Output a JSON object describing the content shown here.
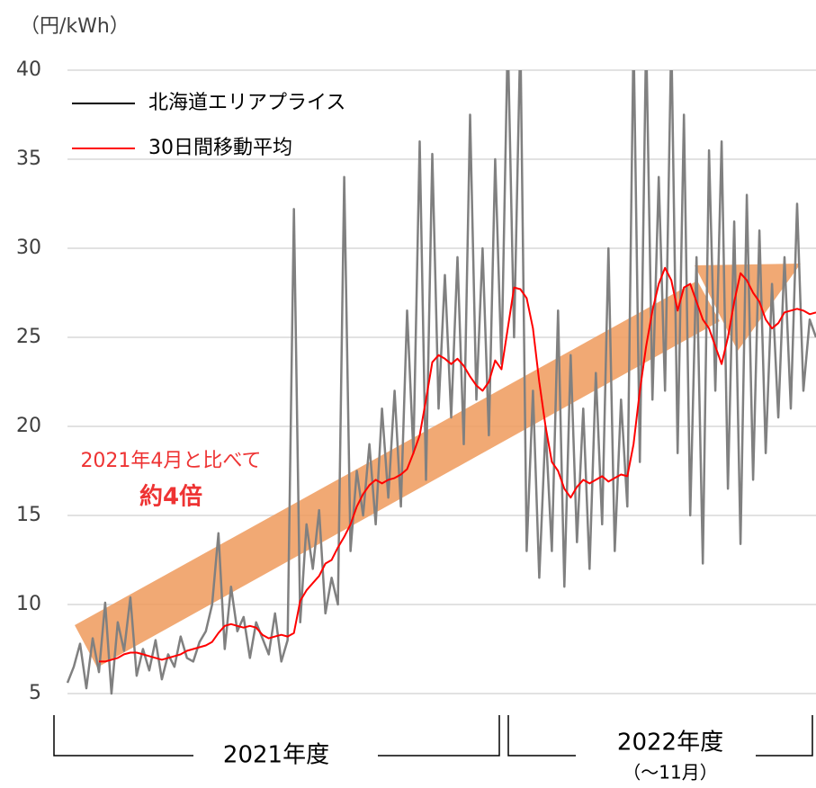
{
  "chart_data": {
    "type": "line",
    "y_label": "（円/kWh）",
    "ylim": [
      5,
      40
    ],
    "yticks": [
      5,
      10,
      15,
      20,
      25,
      30,
      35,
      40
    ],
    "grid": true,
    "legend": "upper left",
    "series": [
      {
        "name": "北海道エリアプライス",
        "color": "#808080",
        "values": [
          5.6,
          6.5,
          7.8,
          5.3,
          8.1,
          6.2,
          10.1,
          5.0,
          9.0,
          7.4,
          10.4,
          6.0,
          7.5,
          6.3,
          8.0,
          5.8,
          7.2,
          6.5,
          8.2,
          7.0,
          6.8,
          7.9,
          8.5,
          10.0,
          14.0,
          7.5,
          11.0,
          8.5,
          9.3,
          7.0,
          9.0,
          8.1,
          7.2,
          9.5,
          6.8,
          8.0,
          32.2,
          9.0,
          14.5,
          12.0,
          15.3,
          9.5,
          11.5,
          10.0,
          34.0,
          13.0,
          17.5,
          15.0,
          19.0,
          14.5,
          21.0,
          16.0,
          22.0,
          15.5,
          26.5,
          18.5,
          36.0,
          17.0,
          35.3,
          21.0,
          28.5,
          20.5,
          29.5,
          19.0,
          37.5,
          21.5,
          30.0,
          19.5,
          35.0,
          23.5,
          42.0,
          25.0,
          42.0,
          13.0,
          22.0,
          11.5,
          20.0,
          13.0,
          26.5,
          11.0,
          24.0,
          13.5,
          21.0,
          12.0,
          23.0,
          14.5,
          30.0,
          13.0,
          21.5,
          15.5,
          42.0,
          18.0,
          42.0,
          21.5,
          34.0,
          22.0,
          42.0,
          18.5,
          37.5,
          15.0,
          29.5,
          12.3,
          35.5,
          22.0,
          36.0,
          16.5,
          31.5,
          13.4,
          33.0,
          17.0,
          31.0,
          18.5,
          28.0,
          20.5,
          29.5,
          21.0,
          32.5,
          22.0,
          26.0,
          25.0
        ]
      },
      {
        "name": "30日間移動平均",
        "color": "#ff0000",
        "values": [
          null,
          null,
          null,
          null,
          null,
          6.8,
          6.8,
          6.9,
          7.0,
          7.2,
          7.3,
          7.3,
          7.2,
          7.1,
          7.0,
          6.9,
          7.0,
          7.1,
          7.2,
          7.4,
          7.5,
          7.6,
          7.7,
          7.9,
          8.4,
          8.8,
          8.9,
          8.8,
          8.7,
          8.8,
          8.7,
          8.3,
          8.1,
          8.2,
          8.3,
          8.2,
          8.4,
          10.2,
          10.8,
          11.2,
          11.6,
          12.3,
          12.5,
          13.2,
          13.8,
          14.5,
          15.5,
          16.2,
          16.7,
          17.0,
          16.8,
          17.0,
          17.1,
          17.3,
          17.6,
          18.5,
          19.5,
          21.5,
          23.6,
          24.0,
          23.8,
          23.5,
          23.8,
          23.4,
          22.8,
          22.3,
          22.0,
          22.5,
          23.7,
          23.2,
          25.5,
          27.8,
          27.7,
          27.2,
          25.5,
          22.5,
          20.0,
          18.0,
          17.5,
          16.5,
          16.0,
          16.6,
          17.0,
          16.8,
          17.0,
          17.2,
          16.9,
          17.1,
          17.3,
          17.2,
          19.0,
          22.0,
          24.5,
          26.5,
          28.0,
          28.9,
          28.2,
          26.5,
          27.8,
          28.0,
          27.0,
          26.0,
          25.5,
          24.5,
          23.5,
          25.0,
          27.0,
          28.6,
          28.2,
          27.5,
          27.0,
          26.0,
          25.5,
          25.8,
          26.4,
          26.5,
          26.6,
          26.5,
          26.3,
          26.4
        ]
      }
    ],
    "annotations": [
      "2021年4月と比べて",
      "約4倍"
    ],
    "periods": [
      "2021年度",
      "2022年度",
      "（～11月）"
    ]
  }
}
